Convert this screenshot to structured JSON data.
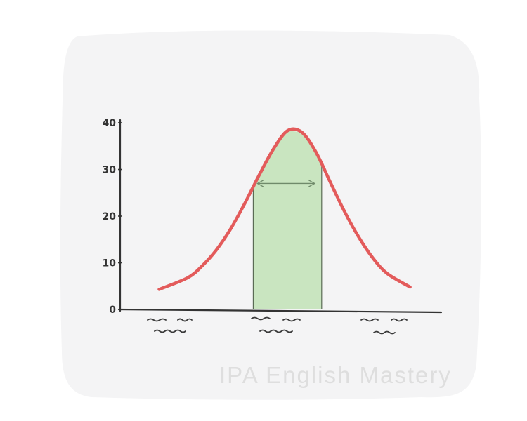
{
  "watermark": "IPA English Mastery",
  "colors": {
    "background_card": "#f4f4f5",
    "curve": "#e35b5b",
    "shade_fill": "#c9e5c0",
    "shade_edge": "#5a6b55",
    "axis": "#333333",
    "arrow": "#6f8a6a"
  },
  "chart_data": {
    "type": "line",
    "title": "",
    "xlabel": "",
    "ylabel": "",
    "ylim": [
      0,
      40
    ],
    "yticks": [
      0,
      10,
      20,
      30,
      40
    ],
    "x_ticklabels": "illegible handwritten squiggles (3 groups)",
    "grid": false,
    "series": [
      {
        "x": [
          -4.5,
          -3.5,
          -3,
          -2.5,
          -2,
          -1.5,
          -1,
          -0.5,
          0,
          0.5,
          1,
          1.5,
          2,
          2.5,
          3,
          3.5,
          4.3
        ],
        "values": [
          4.3,
          6.8,
          9.3,
          12.7,
          17.2,
          22.7,
          28.7,
          34.3,
          38.3,
          38.0,
          33.7,
          27.3,
          21.0,
          15.5,
          11.0,
          7.7,
          4.8
        ]
      }
    ],
    "shaded_region": {
      "x_from": -1.2,
      "x_to": 1.2,
      "color": "#c9e5c0"
    },
    "annotation": {
      "type": "double-arrow",
      "x_from": -1.2,
      "x_to": 1.2,
      "y": 27
    }
  }
}
